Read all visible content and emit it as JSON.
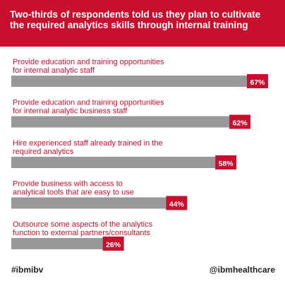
{
  "header": {
    "title": "Two-thirds of respondents told us they plan to cultivate the required analytics skills through internal training"
  },
  "chart_data": {
    "type": "bar",
    "orientation": "horizontal",
    "categories": [
      [
        "Provide education and training opportunities",
        "for internal analytic staff"
      ],
      [
        "Provide education and training opportunities",
        "for internal analytic business staff"
      ],
      [
        "Hire experienced staff already trained in the",
        "required analytics"
      ],
      [
        "Provide business with access to",
        "analytical tools that are easy to use"
      ],
      [
        "Outsource some aspects of the analytics",
        "function to external partners/consultants"
      ]
    ],
    "values": [
      67,
      62,
      58,
      44,
      26
    ],
    "value_labels": [
      "67%",
      "62%",
      "58%",
      "44%",
      "26%"
    ],
    "xlim": [
      0,
      100
    ],
    "colors": {
      "bar": "#999999",
      "label": "#c8102e",
      "badge": "#c8102e"
    }
  },
  "footer": {
    "hashtag": "#ibmibv",
    "handle": "@ibmhealthcare"
  }
}
